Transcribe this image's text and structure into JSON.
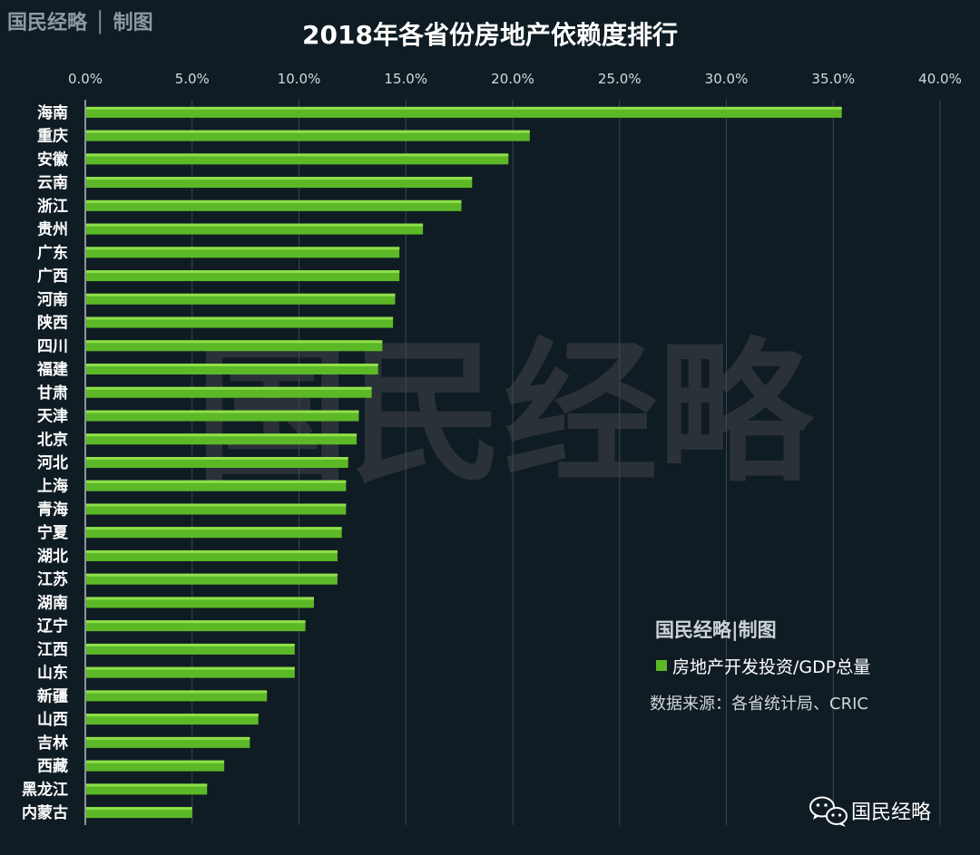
{
  "brand": {
    "top_left": "国民经略 │ 制图",
    "watermark": "国民经略",
    "legend_brand": "国民经略|制图",
    "footer_name": "国民经略"
  },
  "colors": {
    "background": "#101c24",
    "bar": "#5db827",
    "bar_highlight": "#8fe04a",
    "grid": "#3a464e"
  },
  "legend": {
    "label": "房地产开发投资/GDP总量",
    "source": "数据来源：各省统计局、CRIC"
  },
  "icons": {
    "footer": "wechat-icon"
  },
  "chart_data": {
    "type": "bar",
    "orientation": "horizontal",
    "title": "2018年各省份房地产依赖度排行",
    "xlabel": "",
    "ylabel": "",
    "xlim": [
      0,
      40
    ],
    "x_ticks": [
      "0.0%",
      "5.0%",
      "10.0%",
      "15.0%",
      "20.0%",
      "25.0%",
      "30.0%",
      "35.0%",
      "40.0%"
    ],
    "x_tick_values": [
      0,
      5,
      10,
      15,
      20,
      25,
      30,
      35,
      40
    ],
    "grid": true,
    "legend_position": "bottom-right",
    "series_name": "房地产开发投资/GDP总量",
    "categories": [
      "海南",
      "重庆",
      "安徽",
      "云南",
      "浙江",
      "贵州",
      "广东",
      "广西",
      "河南",
      "陕西",
      "四川",
      "福建",
      "甘肃",
      "天津",
      "北京",
      "河北",
      "上海",
      "青海",
      "宁夏",
      "湖北",
      "江苏",
      "湖南",
      "辽宁",
      "江西",
      "山东",
      "新疆",
      "山西",
      "吉林",
      "西藏",
      "黑龙江",
      "内蒙古"
    ],
    "values": [
      35.4,
      20.8,
      19.8,
      18.1,
      17.6,
      15.8,
      14.7,
      14.7,
      14.5,
      14.4,
      13.9,
      13.7,
      13.4,
      12.8,
      12.7,
      12.3,
      12.2,
      12.2,
      12.0,
      11.8,
      11.8,
      10.7,
      10.3,
      9.8,
      9.8,
      8.5,
      8.1,
      7.7,
      6.5,
      5.7,
      5.0
    ]
  }
}
